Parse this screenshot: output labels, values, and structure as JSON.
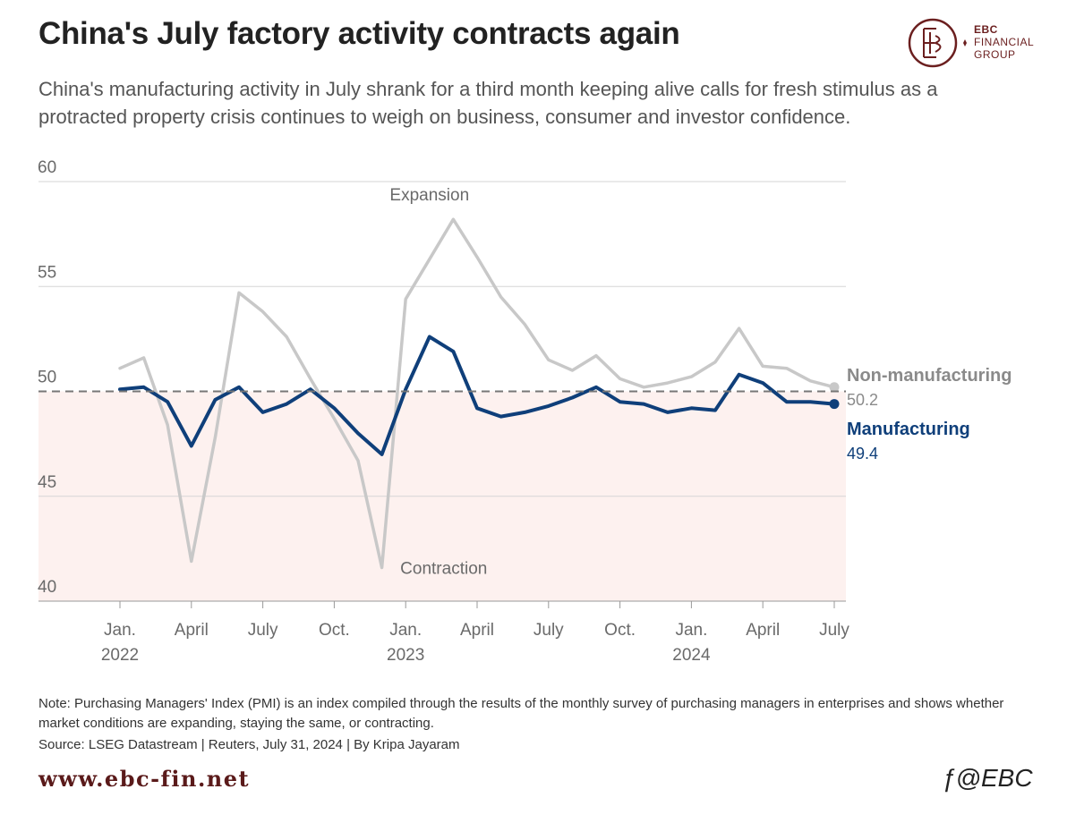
{
  "header": {
    "title": "China's July factory activity contracts again",
    "subtitle": "China's manufacturing activity in July shrank for a third month keeping alive calls for fresh stimulus as a protracted property crisis continues to weigh on business, consumer and investor confidence."
  },
  "logo": {
    "line1": "EBC",
    "line2": "FINANCIAL",
    "line3": "GROUP"
  },
  "chart_data": {
    "type": "line",
    "title": "China's July factory activity contracts again",
    "xlabel": "",
    "ylabel": "",
    "ylim": [
      40,
      60
    ],
    "yticks": [
      40,
      45,
      50,
      55,
      60
    ],
    "grid": true,
    "reference_line": 50,
    "x_tick_labels": [
      {
        "index": 0,
        "line1": "Jan.",
        "line2": "2022"
      },
      {
        "index": 3,
        "line1": "April",
        "line2": ""
      },
      {
        "index": 6,
        "line1": "July",
        "line2": ""
      },
      {
        "index": 9,
        "line1": "Oct.",
        "line2": ""
      },
      {
        "index": 12,
        "line1": "Jan.",
        "line2": "2023"
      },
      {
        "index": 15,
        "line1": "April",
        "line2": ""
      },
      {
        "index": 18,
        "line1": "July",
        "line2": ""
      },
      {
        "index": 21,
        "line1": "Oct.",
        "line2": ""
      },
      {
        "index": 24,
        "line1": "Jan.",
        "line2": "2024"
      },
      {
        "index": 27,
        "line1": "April",
        "line2": ""
      },
      {
        "index": 30,
        "line1": "July",
        "line2": ""
      }
    ],
    "annotations": [
      {
        "text": "Expansion",
        "x_index": 13,
        "y": 59.1
      },
      {
        "text": "Contraction",
        "x_index": 13.6,
        "y": 41.3
      }
    ],
    "series": [
      {
        "name": "Non-manufacturing",
        "last_label": "50.2",
        "color": "#c8c8c8",
        "label_color": "#8a8a8a",
        "values": [
          51.1,
          51.6,
          48.4,
          41.9,
          47.8,
          54.7,
          53.8,
          52.6,
          50.6,
          48.7,
          46.7,
          41.6,
          54.4,
          56.3,
          58.2,
          56.4,
          54.5,
          53.2,
          51.5,
          51.0,
          51.7,
          50.6,
          50.2,
          50.4,
          50.7,
          51.4,
          53.0,
          51.2,
          51.1,
          50.5,
          50.2
        ]
      },
      {
        "name": "Manufacturing",
        "last_label": "49.4",
        "color": "#0f3f7a",
        "label_color": "#0f3f7a",
        "values": [
          50.1,
          50.2,
          49.5,
          47.4,
          49.6,
          50.2,
          49.0,
          49.4,
          50.1,
          49.2,
          48.0,
          47.0,
          50.1,
          52.6,
          51.9,
          49.2,
          48.8,
          49.0,
          49.3,
          49.7,
          50.2,
          49.5,
          49.4,
          49.0,
          49.2,
          49.1,
          50.8,
          50.4,
          49.5,
          49.5,
          49.4
        ]
      }
    ]
  },
  "footer": {
    "note": "Note: Purchasing Managers' Index (PMI) is an index compiled through the results of the monthly survey of purchasing managers in enterprises and shows whether market conditions are expanding, staying the same, or contracting.",
    "source": "Source: LSEG Datastream | Reuters, July 31, 2024 | By Kripa Jayaram",
    "website": "www.ebc-fin.net",
    "handle": "@EBC"
  }
}
